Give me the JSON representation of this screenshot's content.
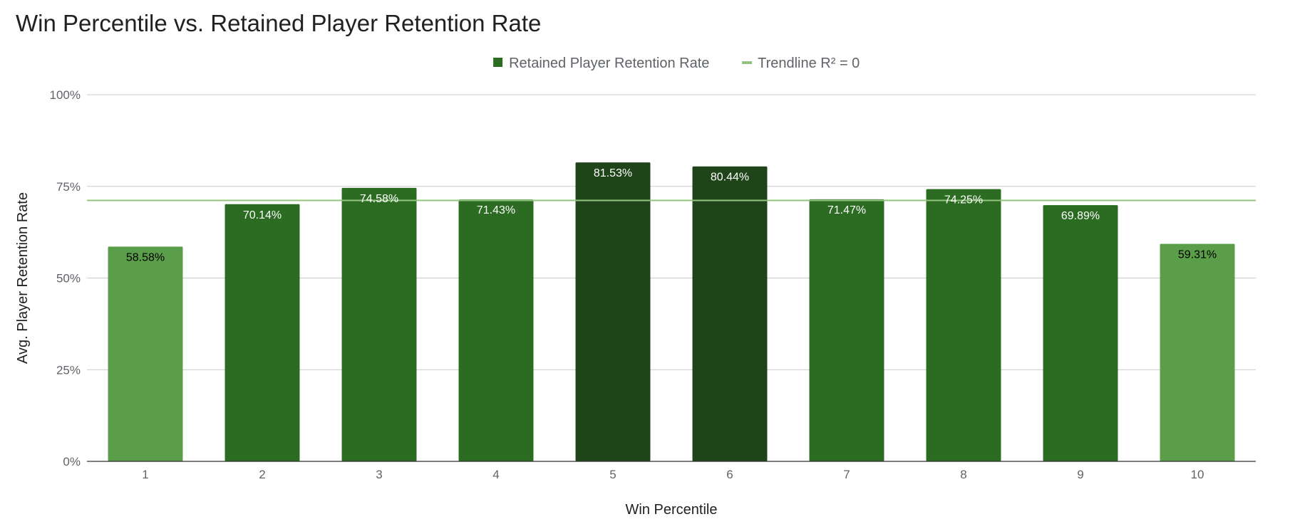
{
  "chart_data": {
    "type": "bar",
    "title": "Win Percentile vs. Retained Player Retention Rate",
    "xlabel": "Win Percentile",
    "ylabel": "Avg. Player Retention Rate",
    "categories": [
      "1",
      "2",
      "3",
      "4",
      "5",
      "6",
      "7",
      "8",
      "9",
      "10"
    ],
    "series": [
      {
        "name": "Retained Player Retention Rate",
        "values": [
          58.58,
          70.14,
          74.58,
          71.43,
          81.53,
          80.44,
          71.47,
          74.25,
          69.89,
          59.31
        ],
        "labels": [
          "58.58%",
          "70.14%",
          "74.58%",
          "71.43%",
          "81.53%",
          "80.44%",
          "71.47%",
          "74.25%",
          "69.89%",
          "59.31%"
        ],
        "colors": [
          "#5a9e4a",
          "#2b6b22",
          "#2b6b22",
          "#2b6b22",
          "#1f441a",
          "#1f441a",
          "#2b6b22",
          "#2b6b22",
          "#2b6b22",
          "#5a9e4a"
        ],
        "label_colors": [
          "#000000",
          "#ffffff",
          "#ffffff",
          "#ffffff",
          "#ffffff",
          "#ffffff",
          "#ffffff",
          "#ffffff",
          "#ffffff",
          "#000000"
        ]
      }
    ],
    "trendline": {
      "name": "Trendline R² = 0",
      "value": 71.16,
      "color": "#93c47d"
    },
    "ylim": [
      0,
      100
    ],
    "yticks": [
      0,
      25,
      50,
      75,
      100
    ],
    "ytick_labels": [
      "0%",
      "25%",
      "50%",
      "75%",
      "100%"
    ],
    "grid": true,
    "legend_position": "top",
    "legend": [
      {
        "label": "Retained Player Retention Rate",
        "color": "#2b6b22",
        "marker": "square"
      },
      {
        "label": "Trendline R² = 0",
        "color": "#93c47d",
        "marker": "line"
      }
    ]
  }
}
